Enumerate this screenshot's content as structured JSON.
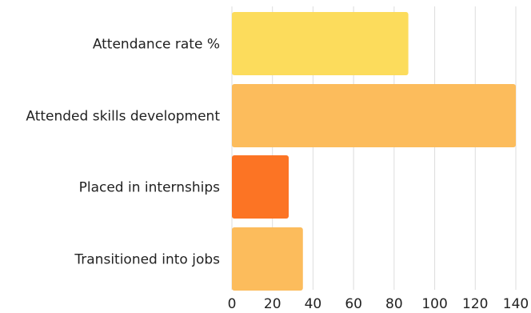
{
  "chart_data": {
    "type": "bar",
    "orientation": "horizontal",
    "categories": [
      "Attendance rate %",
      "Attended skills development",
      "Placed in internships",
      "Transitioned into jobs"
    ],
    "values": [
      87,
      140,
      28,
      35
    ],
    "colors": [
      "#fcdc5c",
      "#fcbc5c",
      "#fc7424",
      "#fcbc5c"
    ],
    "xlim": [
      0,
      140
    ],
    "xticks": [
      0,
      20,
      40,
      60,
      80,
      100,
      120,
      140
    ],
    "grid": true,
    "legend": "none"
  }
}
